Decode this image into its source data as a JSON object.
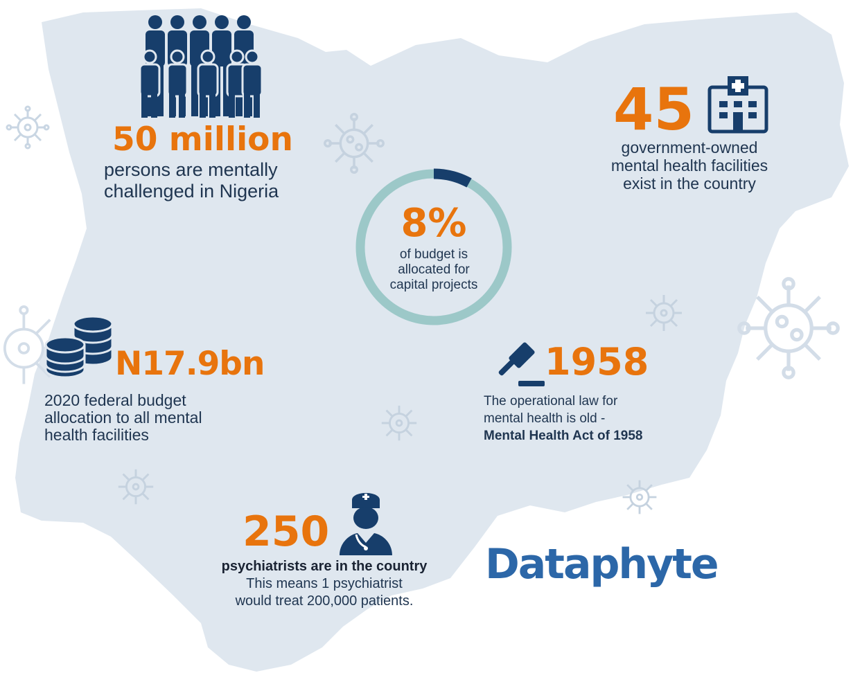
{
  "colors": {
    "accent": "#e8740d",
    "navy": "#173e6b",
    "map": "#dfe7ef",
    "ring": "#9cc8c8",
    "logo": "#2c67a8"
  },
  "stats": {
    "population": {
      "value": "50 million",
      "desc1": "persons are mentally",
      "desc2": "challenged in Nigeria",
      "icon": "people-group-icon"
    },
    "facilities": {
      "value": "45",
      "desc1": "government-owned",
      "desc2": "mental health facilities",
      "desc3": "exist in the country",
      "icon": "hospital-icon"
    },
    "budget_share": {
      "value": "8%",
      "desc1": "of budget is",
      "desc2": "allocated for",
      "desc3": "capital projects",
      "percent": 8
    },
    "allocation": {
      "value": "N17.9bn",
      "desc1": "2020 federal budget",
      "desc2": "allocation to all mental",
      "desc3": "health facilities",
      "icon": "coins-stack-icon"
    },
    "law": {
      "value": "1958",
      "desc1": "The operational law for",
      "desc2": "mental health is old -",
      "desc3": "Mental Health Act of 1958",
      "icon": "gavel-icon"
    },
    "psychiatrists": {
      "value": "250",
      "desc1": "psychiatrists are in the country",
      "desc2": "This means 1 psychiatrist",
      "desc3": "would treat 200,000 patients.",
      "icon": "doctor-icon"
    }
  },
  "brand": {
    "logo": "Dataphyte"
  }
}
